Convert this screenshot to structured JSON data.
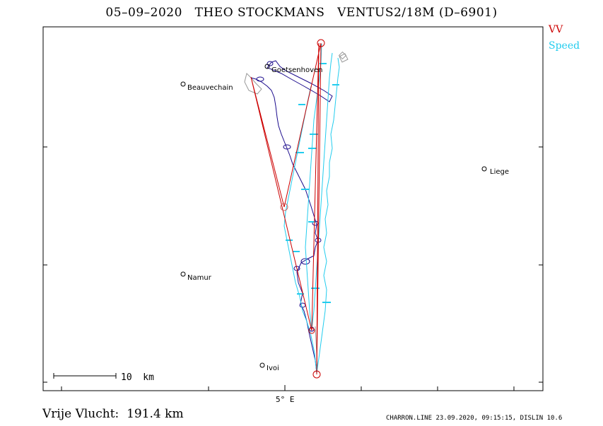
{
  "title": "05–09–2020   THEO STOCKMANS   VENTUS2/18M (D–6901)",
  "legend": [
    {
      "label": "VV",
      "color": "#cc0000"
    },
    {
      "label": "Speed",
      "color": "#22ccee"
    }
  ],
  "places": [
    {
      "name": "Goetsenhoven"
    },
    {
      "name": "Beauvechain"
    },
    {
      "name": "Liege"
    },
    {
      "name": "Namur"
    },
    {
      "name": "Ivoi"
    }
  ],
  "scale_bar_label": "10  km",
  "axis_label": "5° E",
  "distance_text": "Vrije Vlucht:  191.4 km",
  "software_text": "CHARRON.LINE 23.09.2020, 09:15:15, DISLIN 10.6",
  "colors": {
    "task": "#cc0000",
    "speed_track": "#22ccee",
    "climb_track": "#1a0a8c",
    "glide_track": "#999999"
  }
}
